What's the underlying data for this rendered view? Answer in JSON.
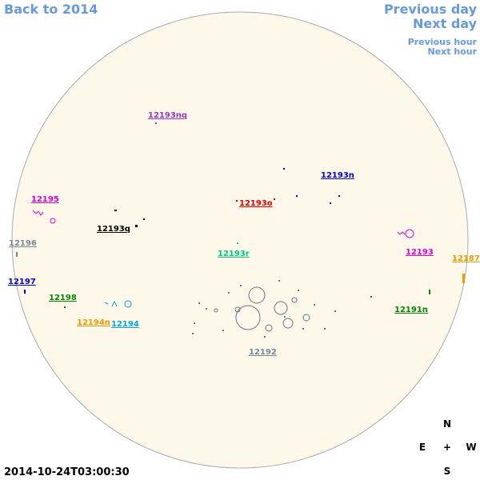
{
  "navigation": {
    "back": "Back to 2014",
    "previous_day": "Previous day",
    "next_day": "Next day",
    "previous_hour": "Previous hour",
    "next_hour": "Next hour"
  },
  "regions": [
    {
      "label": "12193nq",
      "color": "#9933cc"
    },
    {
      "label": "12193n",
      "color": "#0000cc"
    },
    {
      "label": "12195",
      "color": "#dd00dd"
    },
    {
      "label": "12193o",
      "color": "#dd0000"
    },
    {
      "label": "12193q",
      "color": "#000000"
    },
    {
      "label": "12196",
      "color": "#778899"
    },
    {
      "label": "12193r",
      "color": "#00cc88"
    },
    {
      "label": "12193",
      "color": "#dd00dd"
    },
    {
      "label": "12187",
      "color": "#ee9900"
    },
    {
      "label": "12197",
      "color": "#0000cc"
    },
    {
      "label": "12198",
      "color": "#008800"
    },
    {
      "label": "12191n",
      "color": "#008800"
    },
    {
      "label": "12194n",
      "color": "#ee9900"
    },
    {
      "label": "12194",
      "color": "#00aadd"
    },
    {
      "label": "12192",
      "color": "#778899"
    }
  ],
  "compass": {
    "north": "N",
    "east": "E",
    "center": "+",
    "west": "W",
    "south": "S"
  },
  "timestamp": "2014-10-24T03:00:30"
}
